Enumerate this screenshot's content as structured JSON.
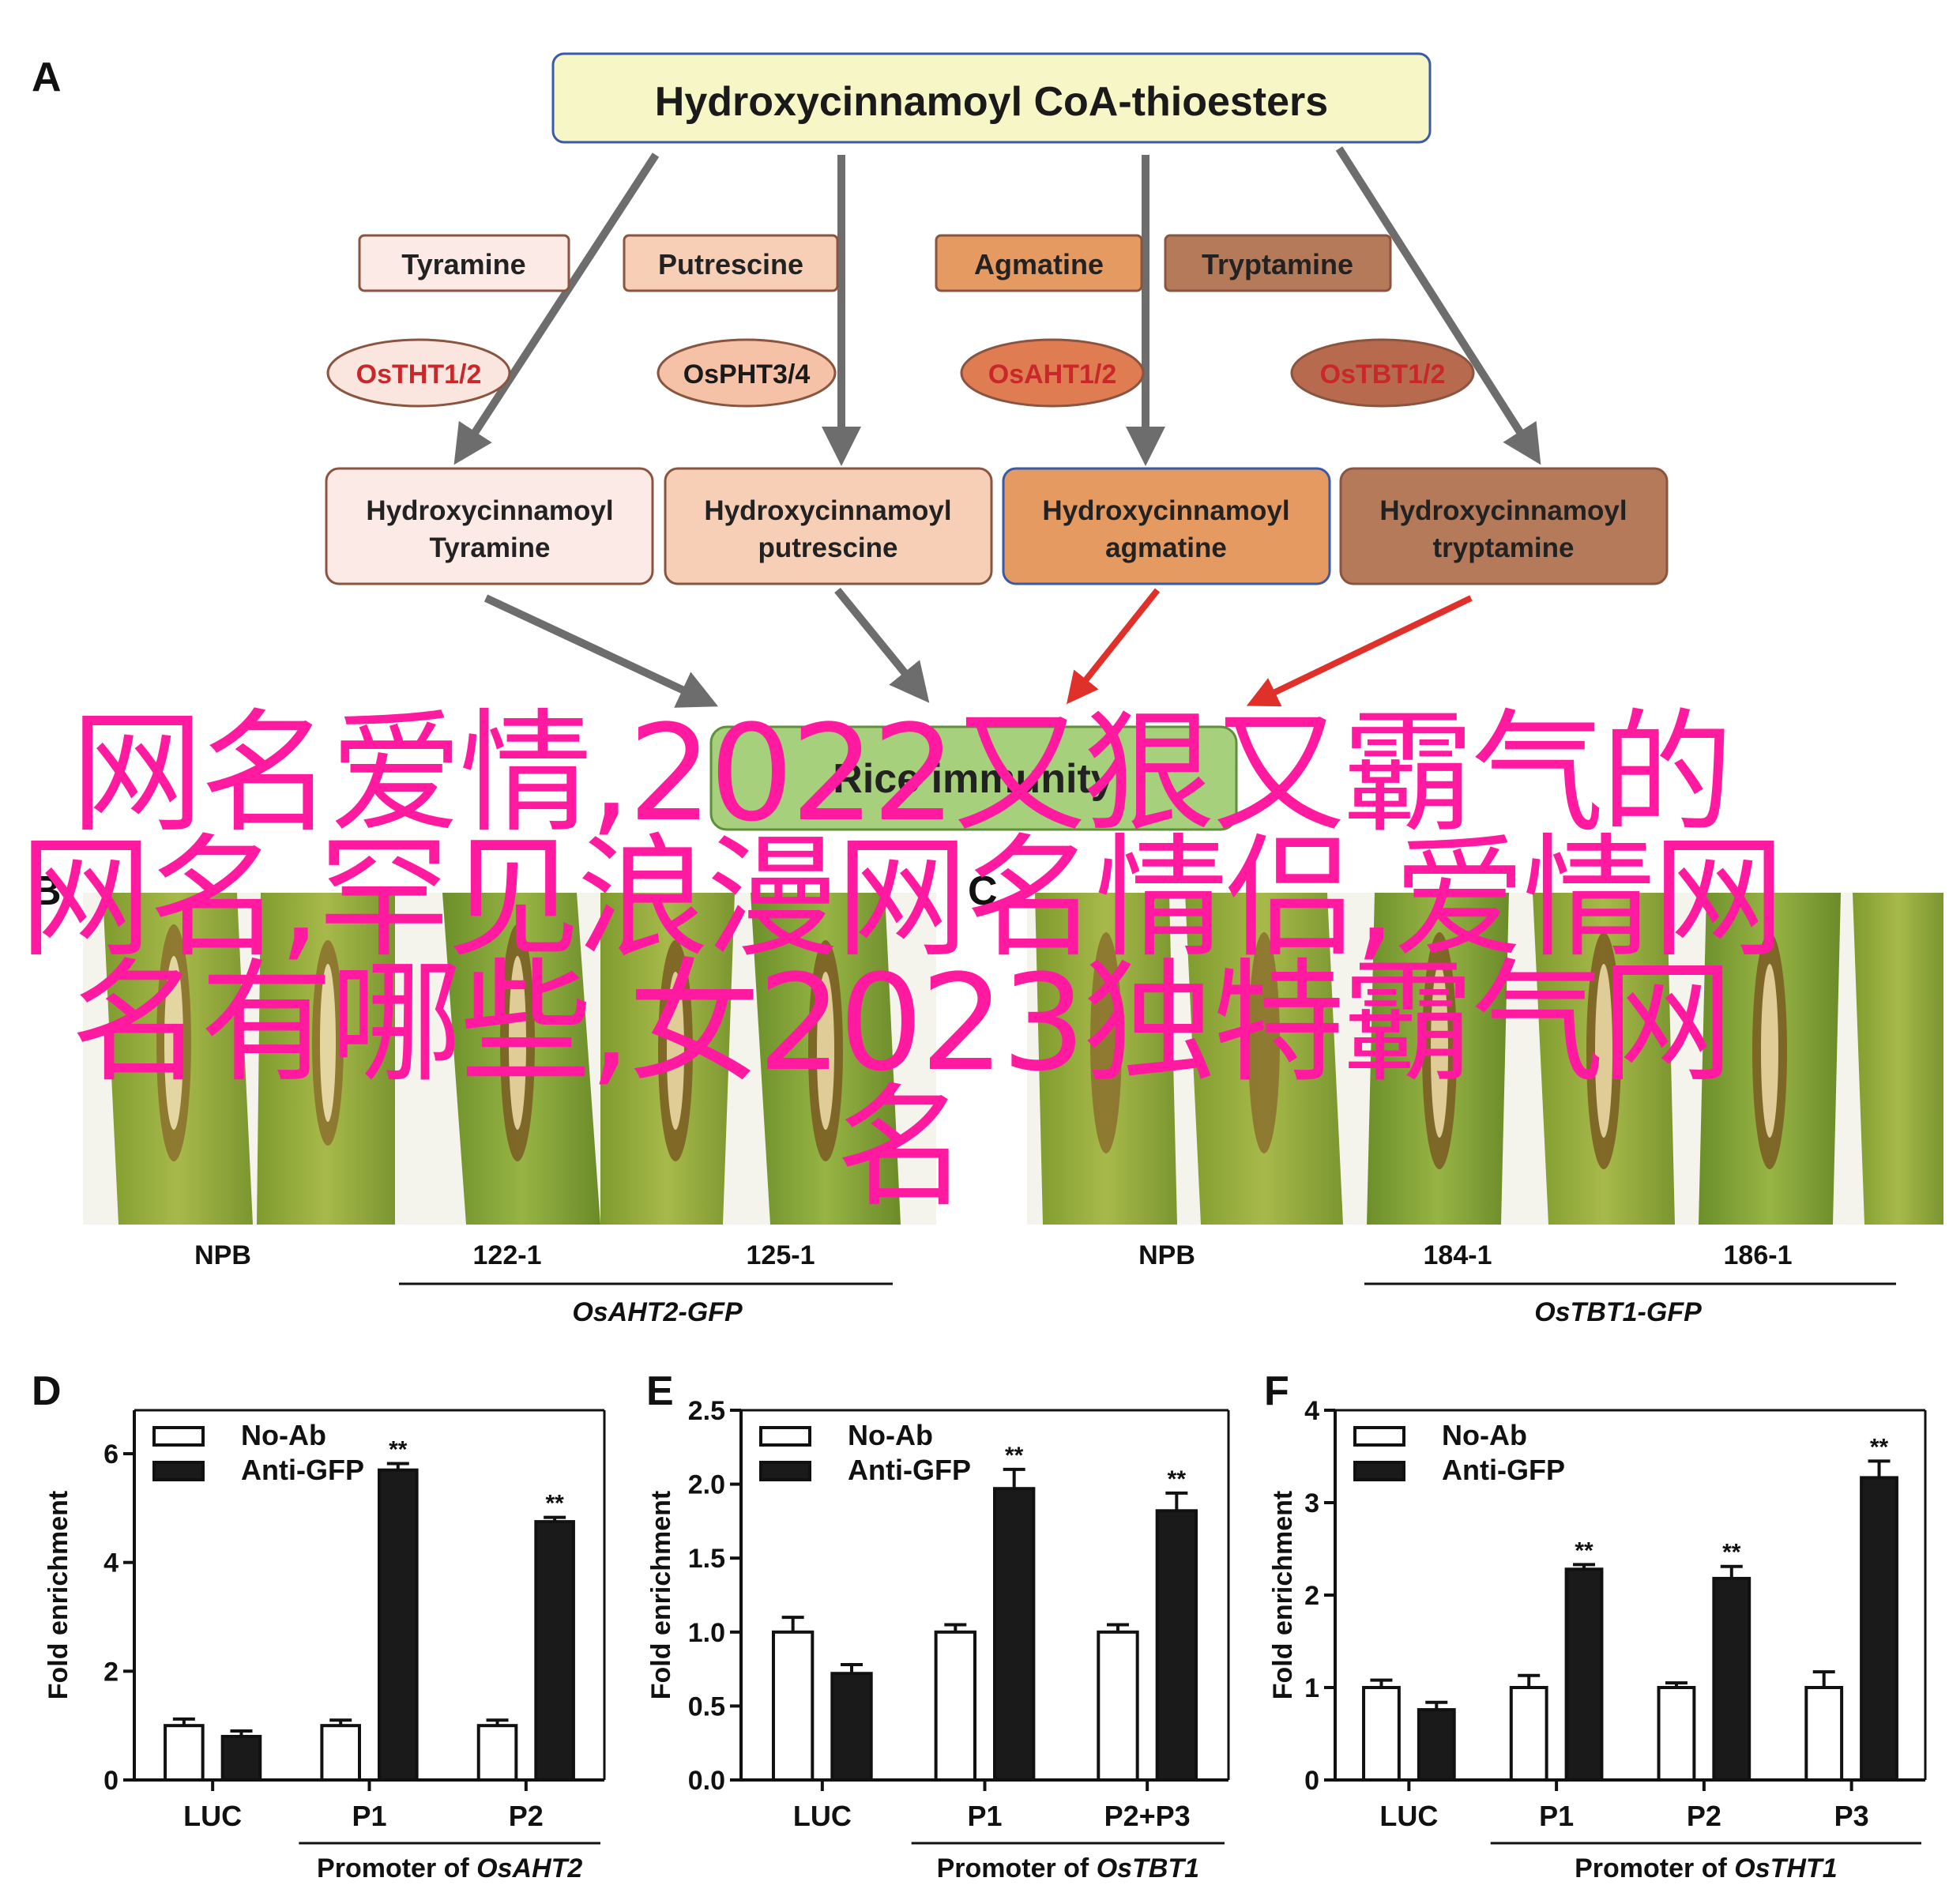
{
  "panelA": {
    "letter": "A",
    "top": "Hydroxycinnamoyl CoA-thioesters",
    "amines": [
      "Tyramine",
      "Putrescine",
      "Agmatine",
      "Tryptamine"
    ],
    "enzymes": [
      "OsTHT1/2",
      "OsPHT3/4",
      "OsAHT1/2",
      "OsTBT1/2"
    ],
    "products": [
      [
        "Hydroxycinnamoyl",
        "Tyramine"
      ],
      [
        "Hydroxycinnamoyl",
        "putrescine"
      ],
      [
        "Hydroxycinnamoyl",
        "agmatine"
      ],
      [
        "Hydroxycinnamoyl",
        "tryptamine"
      ]
    ],
    "bottom": "Rice immunity",
    "colors": {
      "top_fill": "#f6f6c6",
      "top_stroke": "#3a5aa8",
      "tyramine": "#fbeae6",
      "putrescine": "#f7cfb6",
      "agmatine": "#e59a62",
      "tryptamine": "#b57a5a",
      "enzyme1": "#fbe6df",
      "enzyme2": "#f5c2a8",
      "enzyme3": "#e07c52",
      "enzyme4": "#b86a4e",
      "box_stroke": "#8a5540",
      "arrow_gray": "#707070",
      "arrow_red": "#e0302a",
      "immunity": "#a6d07c"
    }
  },
  "panelB": {
    "letter": "B",
    "lanes": [
      "NPB",
      "122-1",
      "125-1"
    ],
    "group": "OsAHT2-GFP"
  },
  "panelC": {
    "letter": "C",
    "lanes": [
      "NPB",
      "184-1",
      "186-1"
    ],
    "group": "OsTBT1-GFP"
  },
  "legend": [
    "No-Ab",
    "Anti-GFP"
  ],
  "ylabel": "Fold  enrichment",
  "chart_data": [
    {
      "type": "bar",
      "letter": "D",
      "categories": [
        "LUC",
        "P1",
        "P2"
      ],
      "series": [
        {
          "name": "No-Ab",
          "values": [
            1.0,
            1.0,
            1.0
          ],
          "err": [
            0.12,
            0.1,
            0.1
          ]
        },
        {
          "name": "Anti-GFP",
          "values": [
            0.8,
            5.7,
            4.75
          ],
          "err": [
            0.1,
            0.12,
            0.08
          ]
        }
      ],
      "sig": [
        "",
        "**",
        "**"
      ],
      "ylim": [
        0,
        6.8
      ],
      "yticks": [
        "0",
        "2",
        "4",
        "6"
      ],
      "ytick_values": [
        0,
        2,
        4,
        6
      ],
      "promoter_prefix": "Promoter of ",
      "promoter_gene": "OsAHT2"
    },
    {
      "type": "bar",
      "letter": "E",
      "categories": [
        "LUC",
        "P1",
        "P2+P3"
      ],
      "series": [
        {
          "name": "No-Ab",
          "values": [
            1.0,
            1.0,
            1.0
          ],
          "err": [
            0.1,
            0.05,
            0.05
          ]
        },
        {
          "name": "Anti-GFP",
          "values": [
            0.72,
            1.97,
            1.82
          ],
          "err": [
            0.06,
            0.13,
            0.12
          ]
        }
      ],
      "sig": [
        "",
        "**",
        "**"
      ],
      "ylim": [
        0,
        2.5
      ],
      "yticks": [
        "0.0",
        "0.5",
        "1.0",
        "1.5",
        "2.0",
        "2.5"
      ],
      "ytick_values": [
        0,
        0.5,
        1,
        1.5,
        2,
        2.5
      ],
      "promoter_prefix": "Promoter of ",
      "promoter_gene": "OsTBT1"
    },
    {
      "type": "bar",
      "letter": "F",
      "categories": [
        "LUC",
        "P1",
        "P2",
        "P3"
      ],
      "series": [
        {
          "name": "No-Ab",
          "values": [
            1.0,
            1.0,
            1.0,
            1.0
          ],
          "err": [
            0.08,
            0.13,
            0.05,
            0.17
          ]
        },
        {
          "name": "Anti-GFP",
          "values": [
            0.76,
            2.28,
            2.18,
            3.27
          ],
          "err": [
            0.08,
            0.05,
            0.13,
            0.18
          ]
        }
      ],
      "sig": [
        "",
        "**",
        "**",
        "**"
      ],
      "ylim": [
        0,
        4
      ],
      "yticks": [
        "0",
        "1",
        "2",
        "3",
        "4"
      ],
      "ytick_values": [
        0,
        1,
        2,
        3,
        4
      ],
      "promoter_prefix": "Promoter of ",
      "promoter_gene": "OsTHT1"
    }
  ],
  "overlay_text": "网名爱情,2022又狠又霸气的网名,罕见浪漫网名情侣,爱情网名有哪些,女2023独特霸气网名"
}
